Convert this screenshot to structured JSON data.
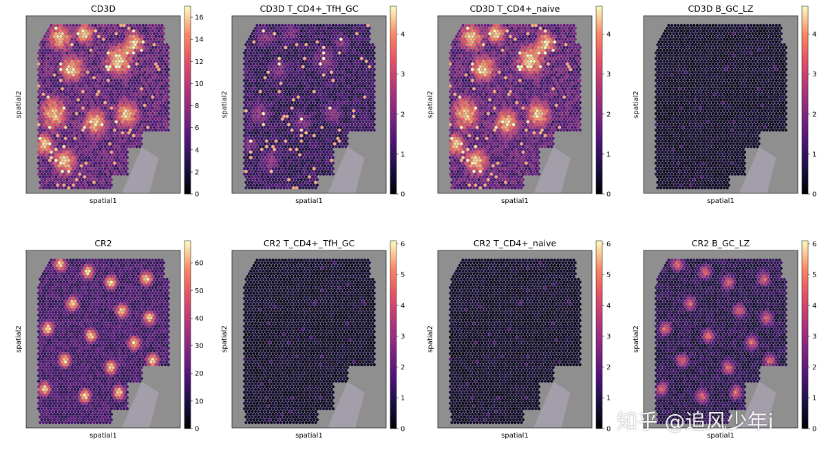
{
  "colormap": "magma",
  "tissue_background_color": "#8f8f8f",
  "watermark": "知乎 @追风少年i",
  "chart_data": [
    {
      "type": "heatmap",
      "title": "CD3D",
      "xlabel": "spatial1",
      "ylabel": "spatial2",
      "colorbar": {
        "min": 0,
        "max": 17,
        "ticks": [
          "0",
          "2",
          "4",
          "6",
          "8",
          "10",
          "12",
          "14",
          "16"
        ]
      },
      "pattern": "high"
    },
    {
      "type": "heatmap",
      "title": "CD3D T_CD4+_TfH_GC",
      "xlabel": "spatial1",
      "ylabel": "spatial2",
      "colorbar": {
        "min": 0,
        "max": 4.7,
        "ticks": [
          "0",
          "1",
          "2",
          "3",
          "4"
        ]
      },
      "pattern": "sparse"
    },
    {
      "type": "heatmap",
      "title": "CD3D T_CD4+_naive",
      "xlabel": "spatial1",
      "ylabel": "spatial2",
      "colorbar": {
        "min": 0,
        "max": 4.7,
        "ticks": [
          "0",
          "1",
          "2",
          "3",
          "4"
        ]
      },
      "pattern": "high"
    },
    {
      "type": "heatmap",
      "title": "CD3D B_GC_LZ",
      "xlabel": "spatial1",
      "ylabel": "spatial2",
      "colorbar": {
        "min": 0,
        "max": 4.7,
        "ticks": [
          "0",
          "1",
          "2",
          "3",
          "4"
        ]
      },
      "pattern": "dark"
    },
    {
      "type": "heatmap",
      "title": "CR2",
      "xlabel": "spatial1",
      "ylabel": "spatial2",
      "colorbar": {
        "min": 0,
        "max": 68,
        "ticks": [
          "0",
          "10",
          "20",
          "30",
          "40",
          "50",
          "60"
        ]
      },
      "pattern": "follicles"
    },
    {
      "type": "heatmap",
      "title": "CR2 T_CD4+_TfH_GC",
      "xlabel": "spatial1",
      "ylabel": "spatial2",
      "colorbar": {
        "min": 0,
        "max": 6.1,
        "ticks": [
          "0",
          "1",
          "2",
          "3",
          "4",
          "5",
          "6"
        ]
      },
      "pattern": "dark"
    },
    {
      "type": "heatmap",
      "title": "CR2 T_CD4+_naive",
      "xlabel": "spatial1",
      "ylabel": "spatial2",
      "colorbar": {
        "min": 0,
        "max": 6.1,
        "ticks": [
          "0",
          "1",
          "2",
          "3",
          "4",
          "5",
          "6"
        ]
      },
      "pattern": "dark"
    },
    {
      "type": "heatmap",
      "title": "CR2 B_GC_LZ",
      "xlabel": "spatial1",
      "ylabel": "spatial2",
      "colorbar": {
        "min": 0,
        "max": 6.1,
        "ticks": [
          "0",
          "1",
          "2",
          "3",
          "4",
          "5",
          "6"
        ]
      },
      "pattern": "follicles-medium"
    }
  ]
}
